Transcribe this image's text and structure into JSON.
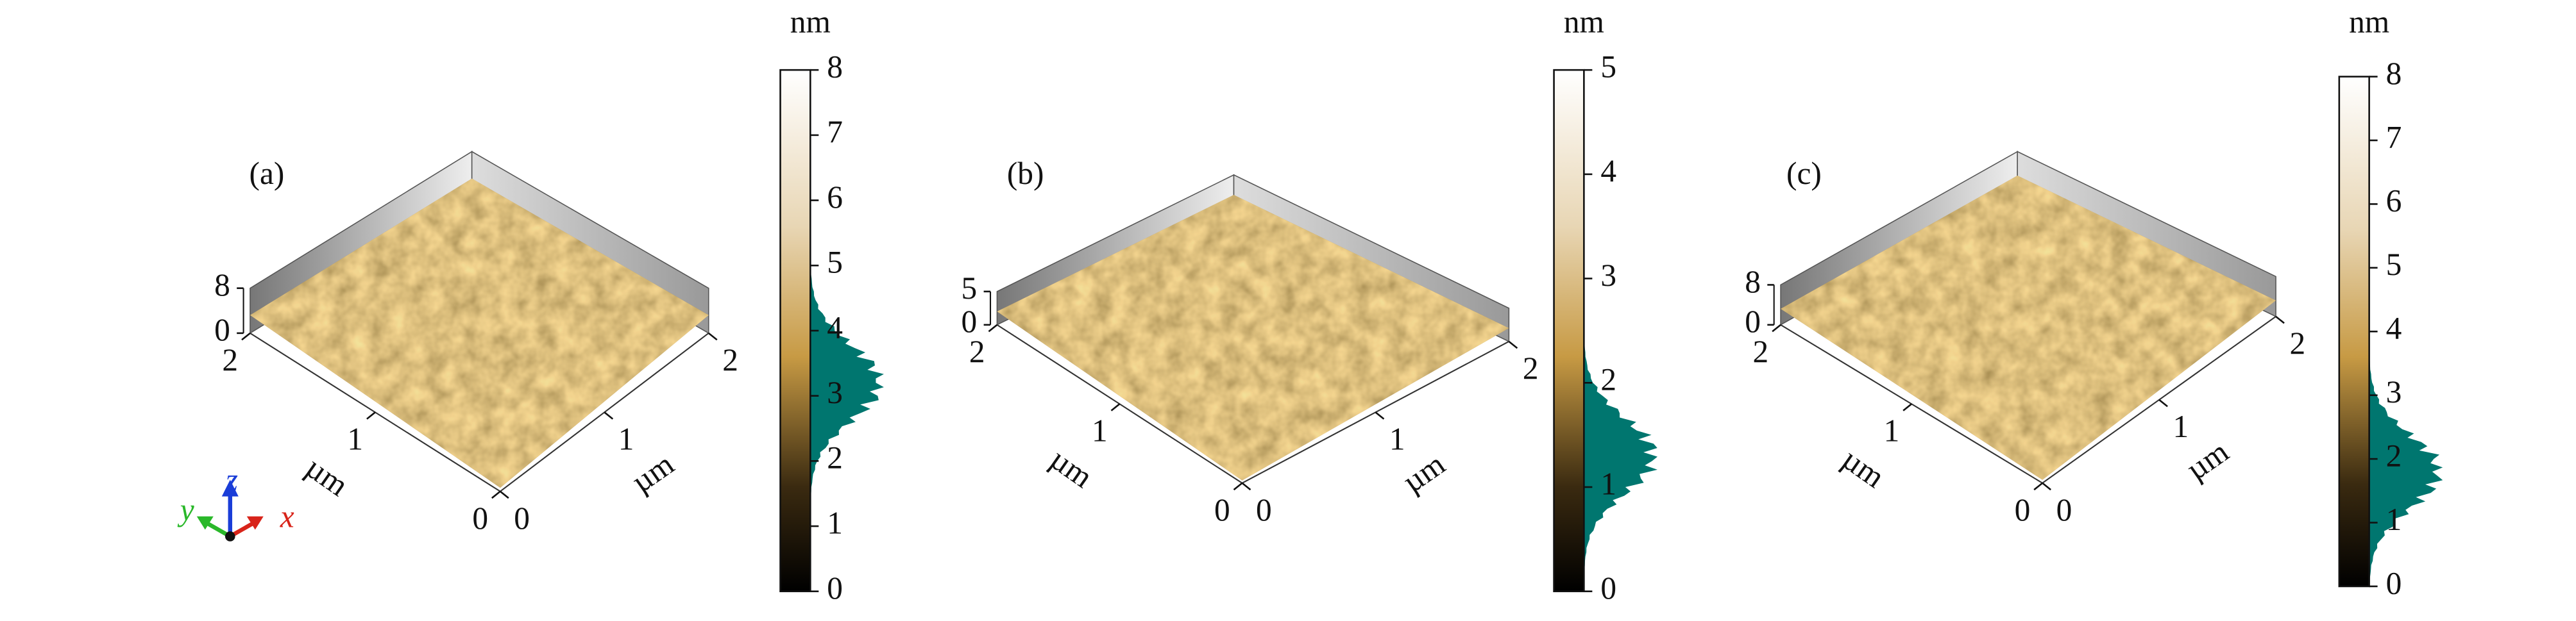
{
  "figure": {
    "panels": [
      {
        "label": "(a)",
        "zlim": [
          0,
          8
        ],
        "z_ticks": [
          0,
          8
        ],
        "xlim": [
          0,
          2
        ],
        "x_ticks": [
          0,
          1,
          2
        ],
        "ylim": [
          0,
          2
        ],
        "y_ticks": [
          0,
          1,
          2
        ],
        "x_unit": "µm",
        "y_unit": "µm",
        "colorbar": {
          "unit": "nm",
          "range": [
            0,
            8
          ],
          "ticks": [
            0,
            1,
            2,
            3,
            4,
            5,
            6,
            7,
            8
          ],
          "histogram_peak": 3.2
        }
      },
      {
        "label": "(b)",
        "zlim": [
          0,
          5
        ],
        "z_ticks": [
          0,
          5
        ],
        "xlim": [
          0,
          2
        ],
        "x_ticks": [
          0,
          1,
          2
        ],
        "ylim": [
          0,
          2
        ],
        "y_ticks": [
          0,
          1,
          2
        ],
        "x_unit": "µm",
        "y_unit": "µm",
        "colorbar": {
          "unit": "nm",
          "range": [
            0,
            5
          ],
          "ticks": [
            0,
            1,
            2,
            3,
            4,
            5
          ],
          "histogram_peak": 1.3
        }
      },
      {
        "label": "(c)",
        "zlim": [
          0,
          8
        ],
        "z_ticks": [
          0,
          8
        ],
        "xlim": [
          0,
          2
        ],
        "x_ticks": [
          0,
          1,
          2
        ],
        "ylim": [
          0,
          2
        ],
        "y_ticks": [
          0,
          1,
          2
        ],
        "x_unit": "µm",
        "y_unit": "µm",
        "colorbar": {
          "unit": "nm",
          "range": [
            0,
            8
          ],
          "ticks": [
            0,
            1,
            2,
            3,
            4,
            5,
            6,
            7,
            8
          ],
          "histogram_peak": 1.8
        }
      }
    ],
    "triad": {
      "x": "x",
      "y": "y",
      "z": "z"
    }
  }
}
